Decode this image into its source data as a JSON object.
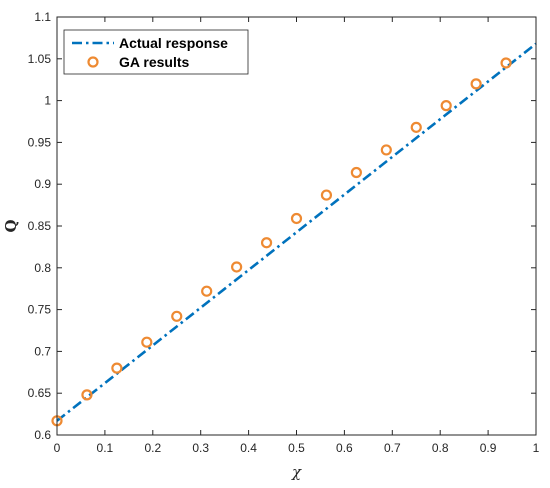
{
  "chart_data": {
    "type": "line",
    "xlabel": "χ",
    "ylabel": "Q",
    "xlim": [
      0,
      1
    ],
    "ylim": [
      0.6,
      1.1
    ],
    "xticks": [
      0,
      0.1,
      0.2,
      0.3,
      0.4,
      0.5,
      0.6,
      0.7,
      0.8,
      0.9,
      1
    ],
    "xtick_labels": [
      "0",
      "0.1",
      "0.2",
      "0.3",
      "0.4",
      "0.5",
      "0.6",
      "0.7",
      "0.8",
      "0.9",
      "1"
    ],
    "yticks": [
      0.6,
      0.65,
      0.7,
      0.75,
      0.8,
      0.85,
      0.9,
      0.95,
      1,
      1.05,
      1.1
    ],
    "ytick_labels": [
      "0.6",
      "0.65",
      "0.7",
      "0.75",
      "0.8",
      "0.85",
      "0.9",
      "0.95",
      "1",
      "1.05",
      "1.1"
    ],
    "grid": false,
    "legend_position": "top-left",
    "series": [
      {
        "name": "Actual response",
        "style": "dash-dot line",
        "color": "#0072BD",
        "x": [
          0,
          1
        ],
        "y": [
          0.617,
          1.068
        ]
      },
      {
        "name": "GA results",
        "style": "circle markers",
        "color": "#EE8A32",
        "x": [
          0,
          0.0625,
          0.125,
          0.1875,
          0.25,
          0.3125,
          0.375,
          0.4375,
          0.5,
          0.5625,
          0.625,
          0.6875,
          0.75,
          0.8125,
          0.875,
          0.9375
        ],
        "y": [
          0.617,
          0.648,
          0.68,
          0.711,
          0.742,
          0.772,
          0.801,
          0.83,
          0.859,
          0.887,
          0.914,
          0.941,
          0.968,
          0.994,
          1.02,
          1.045
        ]
      }
    ]
  }
}
